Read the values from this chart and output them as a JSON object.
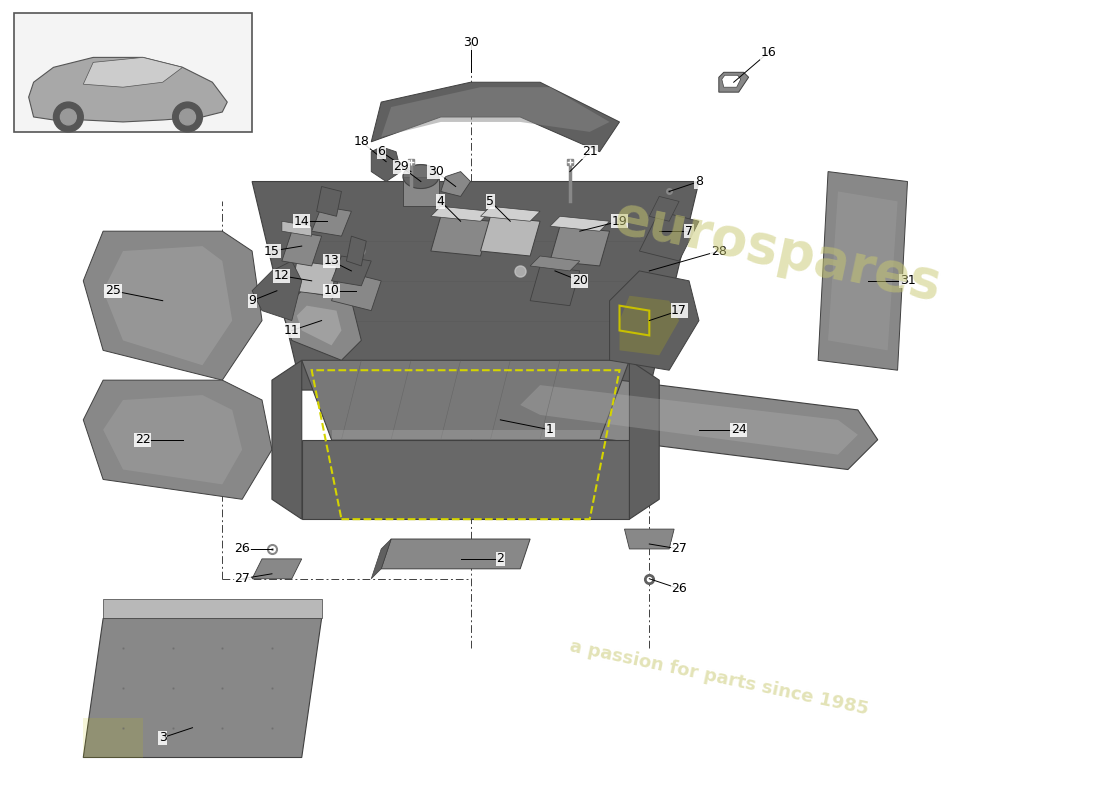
{
  "bg": "#ffffff",
  "wm1": "eurospares",
  "wm2": "a passion for parts since 1985",
  "wm_color": "#c8c870",
  "fs": 9
}
